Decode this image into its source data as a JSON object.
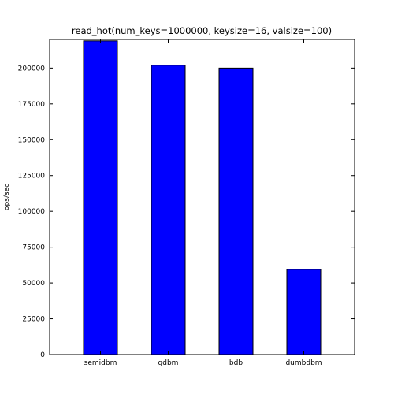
{
  "chart_data": {
    "type": "bar",
    "title": "read_hot(num_keys=1000000, keysize=16, valsize=100)",
    "xlabel": "",
    "ylabel": "ops/sec",
    "categories": [
      "semidbm",
      "gdbm",
      "bdb",
      "dumbdbm"
    ],
    "values": [
      219000,
      202000,
      200000,
      59500
    ],
    "ylim": [
      0,
      220000
    ],
    "yticks": [
      0,
      25000,
      50000,
      75000,
      100000,
      125000,
      150000,
      175000,
      200000
    ],
    "ytick_labels": [
      "0",
      "25000",
      "50000",
      "75000",
      "100000",
      "125000",
      "150000",
      "175000",
      "200000"
    ],
    "bar_color": "#0000ff",
    "edge_color": "#000000",
    "grid": false,
    "legend": false
  }
}
